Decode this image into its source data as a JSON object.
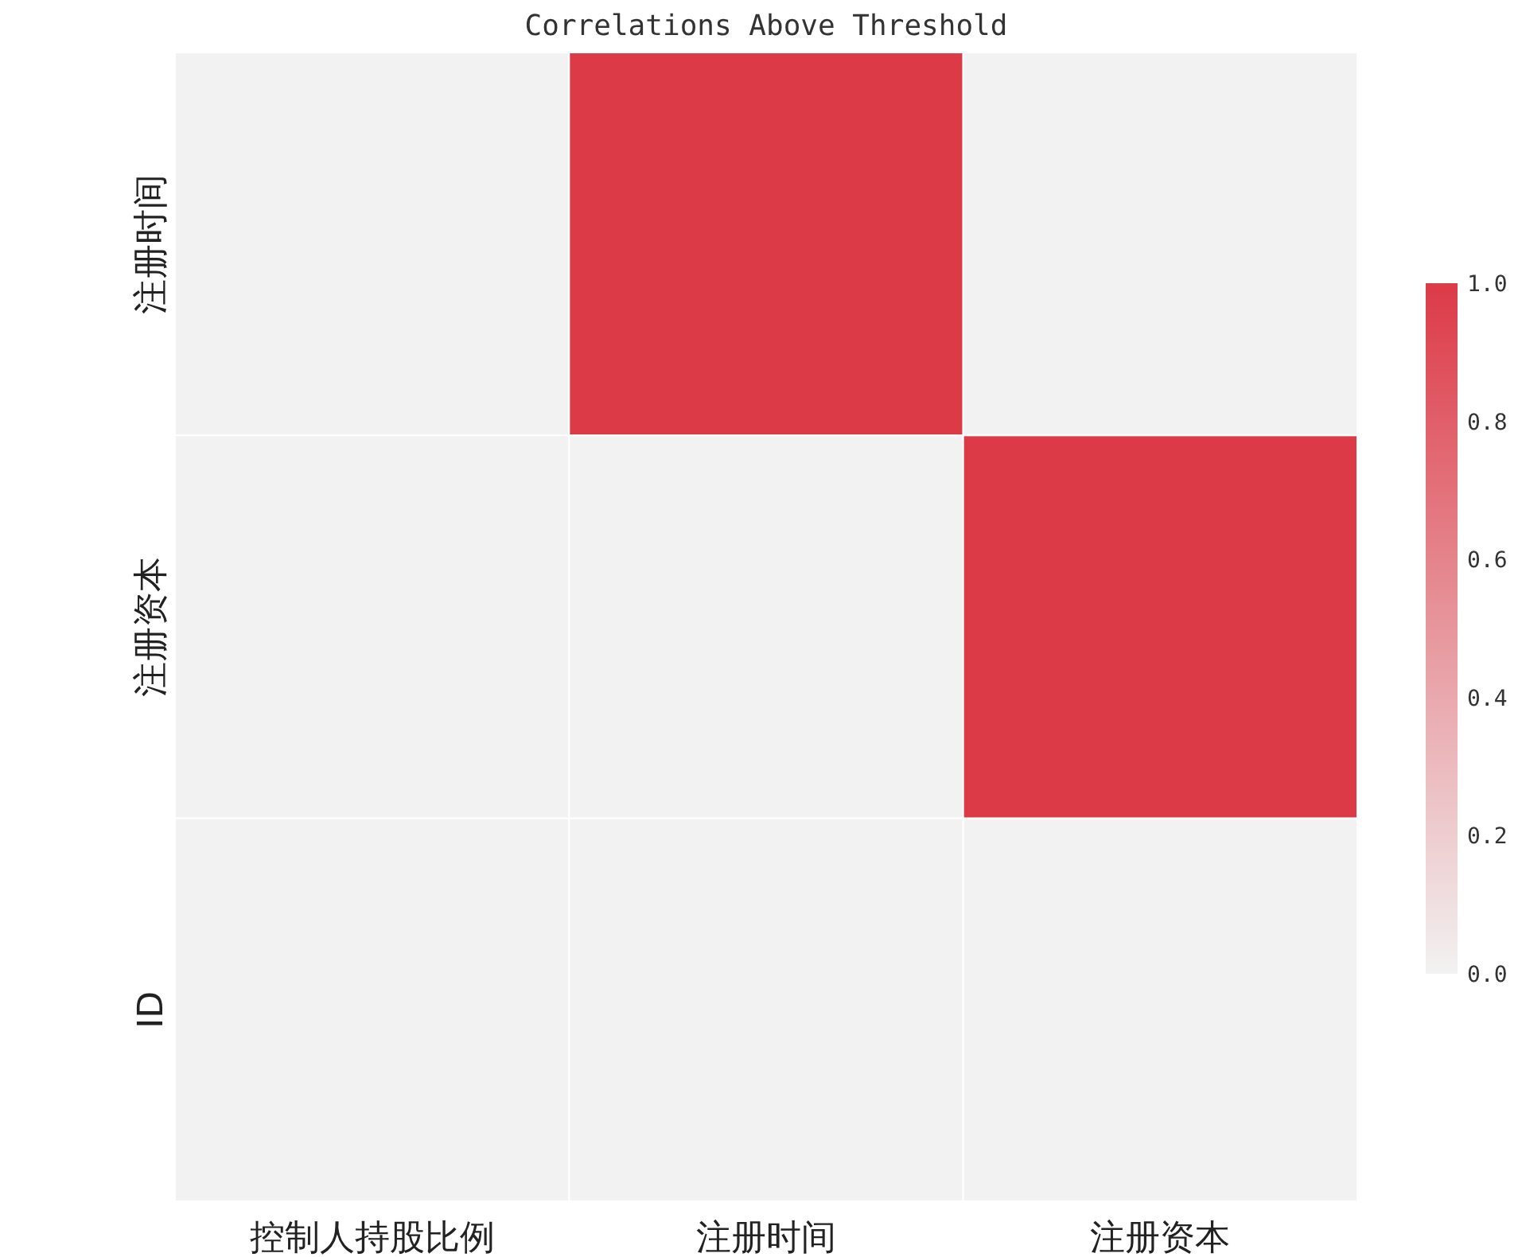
{
  "chart_data": {
    "type": "heatmap",
    "title": "Correlations Above Threshold",
    "categories": [
      "控制人持股比例",
      "注册时间",
      "注册资本"
    ],
    "y_categories": [
      "注册时间",
      "注册资本",
      "ID"
    ],
    "cells": [
      [
        0,
        1,
        0
      ],
      [
        0,
        0,
        1
      ],
      [
        0,
        0,
        0
      ]
    ],
    "clim": [
      0,
      1
    ],
    "cticks": [
      {
        "value": 0,
        "label": "0.0"
      },
      {
        "value": 0.2,
        "label": "0.2"
      },
      {
        "value": 0.4,
        "label": "0.4"
      },
      {
        "value": 0.6,
        "label": "0.6"
      },
      {
        "value": 0.8,
        "label": "0.8"
      },
      {
        "value": 1,
        "label": "1.0"
      }
    ]
  }
}
